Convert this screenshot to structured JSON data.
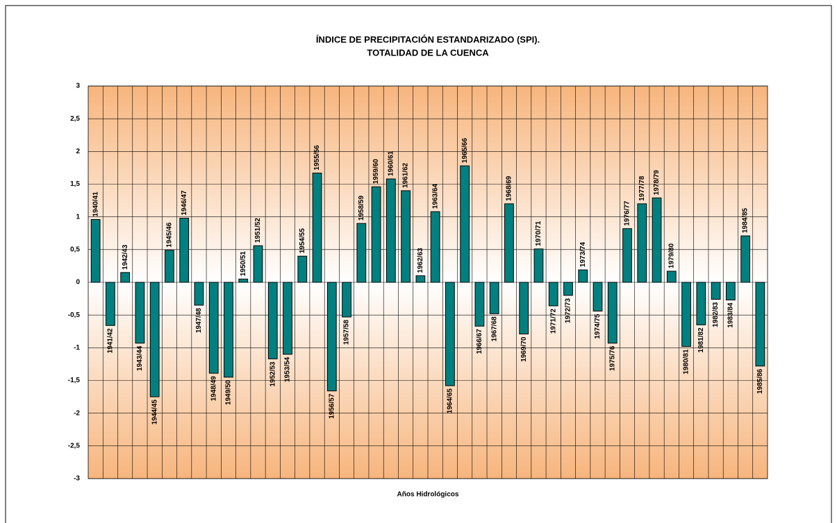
{
  "chart_data": {
    "type": "bar",
    "title": "ÍNDICE DE PRECIPITACIÓN ESTANDARIZADO (SPI).",
    "subtitle": "TOTALIDAD DE LA CUENCA",
    "x_label": "Años Hidrológicos",
    "categories": [
      "1940/41",
      "1941/42",
      "1942/43",
      "1943/44",
      "1944/45",
      "1945/46",
      "1946/47",
      "1947/48",
      "1948/49",
      "1949/50",
      "1950/51",
      "1951/52",
      "1952/53",
      "1953/54",
      "1954/55",
      "1955/56",
      "1956/57",
      "1957/58",
      "1958/59",
      "1959/60",
      "1960/61",
      "1961/62",
      "1962/63",
      "1963/64",
      "1964/65",
      "1965/66",
      "1966/67",
      "1967/68",
      "1968/69",
      "1969/70",
      "1970/71",
      "1971/72",
      "1972/73",
      "1973/74",
      "1974/75",
      "1975/76",
      "1976/77",
      "1977/78",
      "1978/79",
      "1979/80",
      "1980/81",
      "1981/82",
      "1982/83",
      "1983/84",
      "1984/85",
      "1985/86"
    ],
    "values": [
      0.96,
      -0.66,
      0.15,
      -0.93,
      -1.75,
      0.49,
      0.98,
      -0.35,
      -1.39,
      -1.45,
      0.05,
      0.56,
      -1.17,
      -1.1,
      0.4,
      1.67,
      -1.66,
      -0.53,
      0.9,
      1.46,
      1.58,
      1.4,
      0.1,
      1.08,
      -1.58,
      1.78,
      -0.67,
      -0.48,
      1.2,
      -0.79,
      0.51,
      -0.36,
      -0.2,
      0.19,
      -0.44,
      -0.93,
      0.82,
      1.2,
      1.29,
      0.17,
      -0.98,
      -0.65,
      -0.26,
      -0.27,
      0.71,
      -1.28
    ],
    "color": "#008080",
    "ylim": [
      -3,
      3
    ],
    "yticks": [
      3,
      {
        "value": 2.5,
        "label": "2,5"
      },
      2,
      {
        "value": 1.5,
        "label": "1,5"
      },
      1,
      {
        "value": 0.5,
        "label": "0,5"
      },
      0,
      {
        "value": -0.5,
        "label": "-0,5"
      },
      -1,
      {
        "value": -1.5,
        "label": "-1,5"
      },
      -2,
      {
        "value": -2.5,
        "label": "-2,5"
      },
      -3
    ],
    "grid": true
  }
}
